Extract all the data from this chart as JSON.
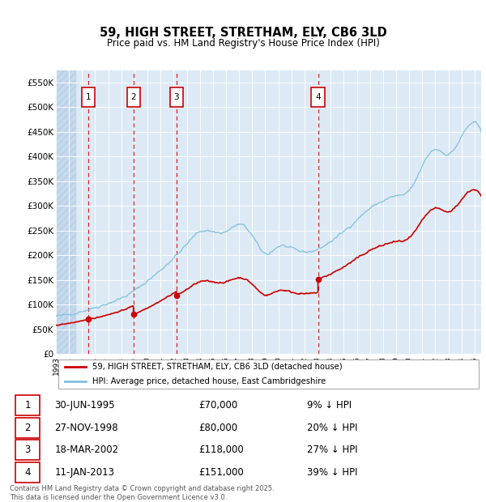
{
  "title": "59, HIGH STREET, STRETHAM, ELY, CB6 3LD",
  "subtitle": "Price paid vs. HM Land Registry's House Price Index (HPI)",
  "legend_line1": "59, HIGH STREET, STRETHAM, ELY, CB6 3LD (detached house)",
  "legend_line2": "HPI: Average price, detached house, East Cambridgeshire",
  "footer": "Contains HM Land Registry data © Crown copyright and database right 2025.\nThis data is licensed under the Open Government Licence v3.0.",
  "transactions": [
    {
      "num": 1,
      "date": "30-JUN-1995",
      "price": 70000,
      "year": 1995.5,
      "pct": "9%"
    },
    {
      "num": 2,
      "date": "27-NOV-1998",
      "price": 80000,
      "year": 1998.92,
      "pct": "20%"
    },
    {
      "num": 3,
      "date": "18-MAR-2002",
      "price": 118000,
      "year": 2002.21,
      "pct": "27%"
    },
    {
      "num": 4,
      "date": "11-JAN-2013",
      "price": 151000,
      "year": 2013.03,
      "pct": "39%"
    }
  ],
  "hpi_color": "#7fbfdf",
  "price_color": "#cc0000",
  "vline_color": "#cc0000",
  "box_color": "#cc0000",
  "ylim": [
    0,
    575000
  ],
  "yticks": [
    0,
    50000,
    100000,
    150000,
    200000,
    250000,
    300000,
    350000,
    400000,
    450000,
    500000,
    550000
  ],
  "xlim": [
    1993.0,
    2025.5
  ],
  "background_main": "#ddeaf5",
  "background_hatch": "#c5d9ee",
  "grid_color": "#e8e8e8",
  "hatch_color": "#b8cfe0"
}
